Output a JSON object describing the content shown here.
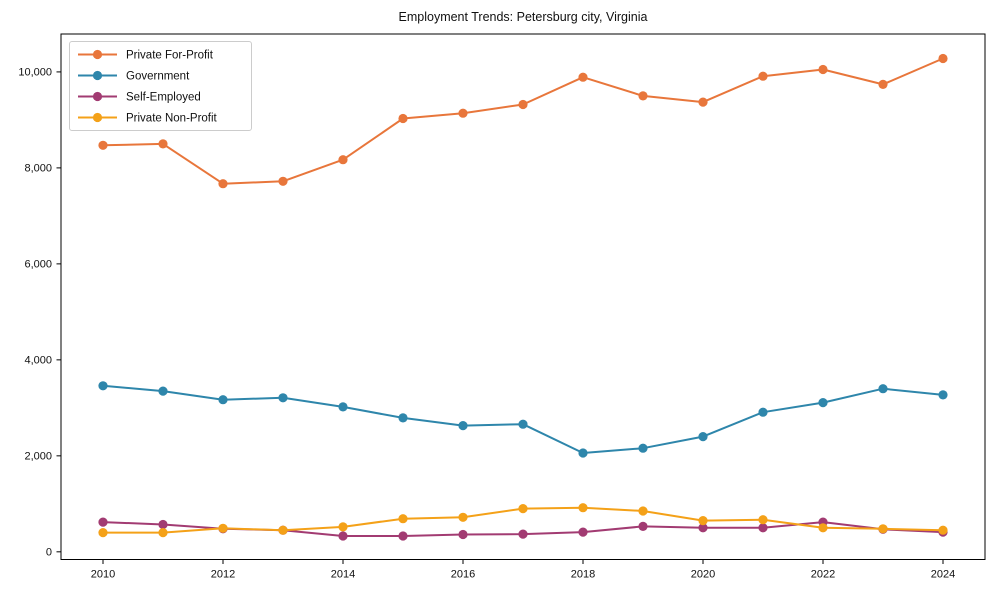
{
  "title": "Employment Trends: Petersburg city, Virginia",
  "chart_data": {
    "type": "line",
    "title": "Employment Trends: Petersburg city, Virginia",
    "xlabel": "",
    "ylabel": "",
    "grid": false,
    "legend_position": "upper-left",
    "x": [
      2010,
      2011,
      2012,
      2013,
      2014,
      2015,
      2016,
      2017,
      2018,
      2019,
      2020,
      2021,
      2022,
      2023,
      2024
    ],
    "series": [
      {
        "name": "Private For-Profit",
        "color": "#e8763b",
        "values": [
          8470,
          8500,
          7670,
          7720,
          8170,
          9030,
          9140,
          9320,
          9890,
          9500,
          9370,
          9910,
          10050,
          9740,
          10280
        ]
      },
      {
        "name": "Government",
        "color": "#2e86ab",
        "values": [
          3460,
          3350,
          3170,
          3210,
          3020,
          2790,
          2630,
          2660,
          2060,
          2160,
          2400,
          2910,
          3110,
          3400,
          3270
        ]
      },
      {
        "name": "Self-Employed",
        "color": "#a23b72",
        "values": [
          620,
          570,
          480,
          450,
          330,
          330,
          360,
          370,
          410,
          530,
          500,
          500,
          620,
          470,
          410
        ]
      },
      {
        "name": "Private Non-Profit",
        "color": "#f4a118",
        "values": [
          400,
          400,
          490,
          450,
          520,
          690,
          720,
          900,
          920,
          850,
          650,
          670,
          500,
          480,
          450
        ]
      }
    ],
    "xticks": [
      2010,
      2012,
      2014,
      2016,
      2018,
      2020,
      2022,
      2024
    ],
    "xtick_labels": [
      "2010",
      "2012",
      "2014",
      "2016",
      "2018",
      "2020",
      "2022",
      "2024"
    ],
    "ytick_values": [
      0,
      2000,
      4000,
      6000,
      8000,
      10000
    ],
    "ytick_labels": [
      "0",
      "2,000",
      "4,000",
      "6,000",
      "8,000",
      "10,000"
    ],
    "xlim": [
      2009.3,
      2024.7
    ],
    "ylim": [
      -160,
      10790
    ],
    "axis_color": "#000000",
    "background": "#ffffff"
  }
}
